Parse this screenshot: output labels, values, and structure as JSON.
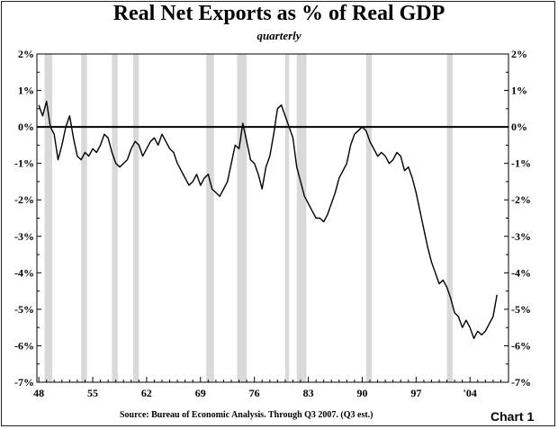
{
  "chart_data": {
    "type": "line",
    "title": "Real Net Exports as % of Real GDP",
    "subtitle": "quarterly",
    "source": "Source:  Bureau of Economic Analysis. Through Q3 2007. (Q3 est.)",
    "chart_label": "Chart 1",
    "xlabel": "",
    "ylabel": "",
    "xlim": [
      1947.75,
      2009.0
    ],
    "ylim": [
      -7,
      2
    ],
    "x_ticks": [
      1948,
      1955,
      1962,
      1969,
      1976,
      1983,
      1990,
      1997,
      2004
    ],
    "x_tick_labels": [
      "48",
      "55",
      "62",
      "69",
      "76",
      "83",
      "90",
      "97",
      "'04"
    ],
    "y_ticks": [
      2,
      1,
      0,
      -1,
      -2,
      -3,
      -4,
      -5,
      -6,
      -7
    ],
    "y_tick_labels": [
      "2%",
      "1%",
      "0%",
      "-1%",
      "-2%",
      "-3%",
      "-4%",
      "-5%",
      "-6%",
      "-7%"
    ],
    "reference_line": 0,
    "recessions": [
      [
        1948.75,
        1949.75
      ],
      [
        1953.5,
        1954.25
      ],
      [
        1957.5,
        1958.25
      ],
      [
        1960.25,
        1961.0
      ],
      [
        1969.75,
        1970.75
      ],
      [
        1973.75,
        1975.0
      ],
      [
        1980.0,
        1980.5
      ],
      [
        1981.5,
        1982.75
      ],
      [
        1990.5,
        1991.25
      ],
      [
        2001.0,
        2001.75
      ]
    ],
    "series": [
      {
        "name": "Real Net Exports as % of Real GDP",
        "x": [
          1948.0,
          1948.5,
          1949.0,
          1949.5,
          1950.0,
          1950.5,
          1951.0,
          1951.5,
          1952.0,
          1952.5,
          1953.0,
          1953.5,
          1954.0,
          1954.5,
          1955.0,
          1955.5,
          1956.0,
          1956.5,
          1957.0,
          1957.5,
          1958.0,
          1958.5,
          1959.0,
          1959.5,
          1960.0,
          1960.5,
          1961.0,
          1961.5,
          1962.0,
          1962.5,
          1963.0,
          1963.5,
          1964.0,
          1964.5,
          1965.0,
          1965.5,
          1966.0,
          1966.5,
          1967.0,
          1967.5,
          1968.0,
          1968.5,
          1969.0,
          1969.5,
          1970.0,
          1970.5,
          1971.0,
          1971.5,
          1972.0,
          1972.5,
          1973.0,
          1973.5,
          1974.0,
          1974.5,
          1975.0,
          1975.5,
          1976.0,
          1976.5,
          1977.0,
          1977.5,
          1978.0,
          1978.5,
          1979.0,
          1979.5,
          1980.0,
          1980.5,
          1981.0,
          1981.5,
          1982.0,
          1982.5,
          1983.0,
          1983.5,
          1984.0,
          1984.5,
          1985.0,
          1985.5,
          1986.0,
          1986.5,
          1987.0,
          1987.5,
          1988.0,
          1988.5,
          1989.0,
          1989.5,
          1990.0,
          1990.5,
          1991.0,
          1991.5,
          1992.0,
          1992.5,
          1993.0,
          1993.5,
          1994.0,
          1994.5,
          1995.0,
          1995.5,
          1996.0,
          1996.5,
          1997.0,
          1997.5,
          1998.0,
          1998.5,
          1999.0,
          1999.5,
          2000.0,
          2000.5,
          2001.0,
          2001.5,
          2002.0,
          2002.5,
          2003.0,
          2003.5,
          2004.0,
          2004.5,
          2005.0,
          2005.5,
          2006.0,
          2006.5,
          2007.0,
          2007.5
        ],
        "values": [
          0.6,
          0.3,
          0.7,
          0.0,
          -0.2,
          -0.9,
          -0.5,
          0.0,
          0.3,
          -0.3,
          -0.8,
          -0.9,
          -0.7,
          -0.8,
          -0.6,
          -0.7,
          -0.5,
          -0.2,
          -0.3,
          -0.7,
          -1.0,
          -1.1,
          -1.0,
          -0.9,
          -0.6,
          -0.4,
          -0.5,
          -0.8,
          -0.6,
          -0.4,
          -0.3,
          -0.5,
          -0.2,
          -0.4,
          -0.6,
          -0.7,
          -1.0,
          -1.2,
          -1.4,
          -1.6,
          -1.5,
          -1.3,
          -1.6,
          -1.4,
          -1.3,
          -1.7,
          -1.8,
          -1.9,
          -1.7,
          -1.5,
          -1.0,
          -0.5,
          -0.6,
          0.1,
          -0.4,
          -0.9,
          -1.0,
          -1.3,
          -1.7,
          -1.1,
          -0.8,
          -0.2,
          0.5,
          0.6,
          0.3,
          0.0,
          -0.3,
          -1.1,
          -1.5,
          -1.9,
          -2.1,
          -2.3,
          -2.5,
          -2.5,
          -2.6,
          -2.4,
          -2.1,
          -1.8,
          -1.4,
          -1.2,
          -1.0,
          -0.5,
          -0.2,
          -0.1,
          0.0,
          -0.1,
          -0.4,
          -0.6,
          -0.8,
          -0.7,
          -0.8,
          -1.0,
          -0.9,
          -0.7,
          -0.8,
          -1.2,
          -1.1,
          -1.4,
          -1.8,
          -2.3,
          -2.8,
          -3.3,
          -3.7,
          -4.0,
          -4.3,
          -4.2,
          -4.4,
          -4.7,
          -5.1,
          -5.2,
          -5.5,
          -5.3,
          -5.5,
          -5.8,
          -5.6,
          -5.7,
          -5.6,
          -5.4,
          -5.2,
          -4.6
        ]
      }
    ]
  }
}
